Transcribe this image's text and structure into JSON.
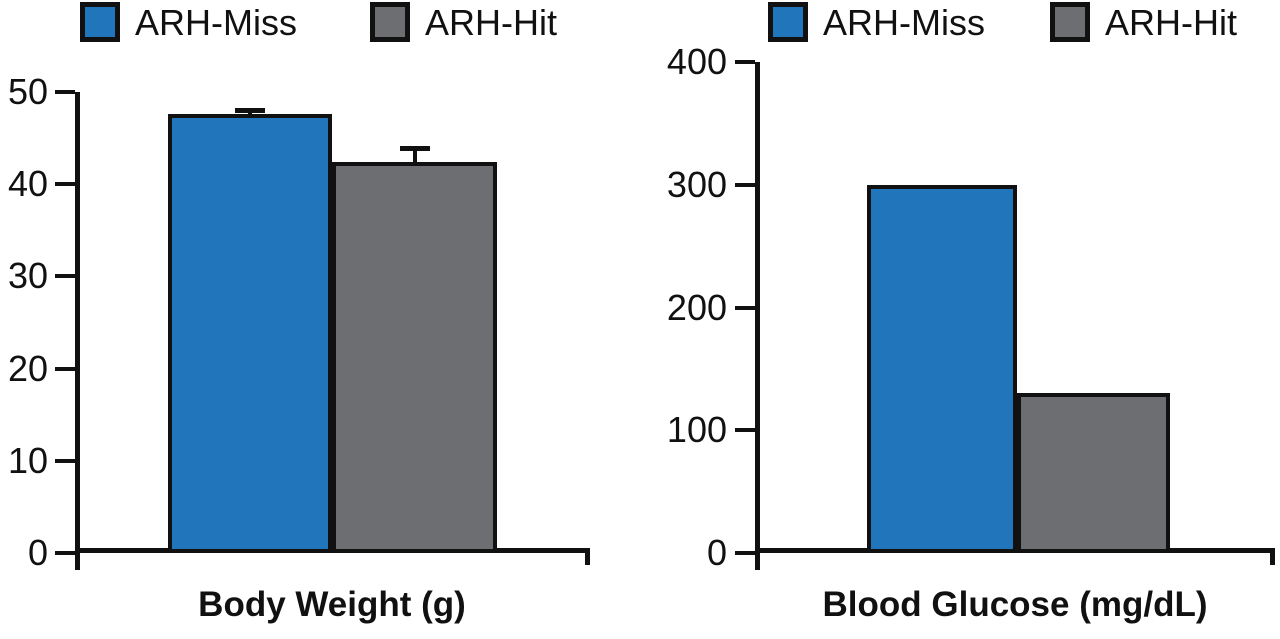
{
  "figure": {
    "background": "#ffffff",
    "series_colors": {
      "miss": "#2075bb",
      "hit": "#6c6e71"
    },
    "axis_color": "#111111"
  },
  "chart_data": [
    {
      "type": "bar",
      "title": "Body Weight (g)",
      "categories": [
        "ARH-Miss",
        "ARH-Hit"
      ],
      "values": [
        47.6,
        42.4
      ],
      "errors": [
        0.4,
        1.5
      ],
      "series_keys": [
        "miss",
        "hit"
      ],
      "legend": [
        {
          "label": "ARH-Miss",
          "color_key": "miss"
        },
        {
          "label": "ARH-Hit",
          "color_key": "hit"
        }
      ],
      "legend_position": "top",
      "xlabel": "",
      "ylabel": "",
      "ylim": [
        0,
        50
      ],
      "yticks": [
        0,
        10,
        20,
        30,
        40,
        50
      ],
      "grid": false
    },
    {
      "type": "bar",
      "title": "Blood Glucose (mg/dL)",
      "categories": [
        "ARH-Miss",
        "ARH-Hit"
      ],
      "values": [
        300,
        130
      ],
      "errors": [
        0,
        0
      ],
      "series_keys": [
        "miss",
        "hit"
      ],
      "legend": [
        {
          "label": "ARH-Miss",
          "color_key": "miss"
        },
        {
          "label": "ARH-Hit",
          "color_key": "hit"
        }
      ],
      "legend_position": "top",
      "xlabel": "",
      "ylabel": "",
      "ylim": [
        0,
        400
      ],
      "yticks": [
        0,
        100,
        200,
        300,
        400
      ],
      "grid": false
    }
  ]
}
